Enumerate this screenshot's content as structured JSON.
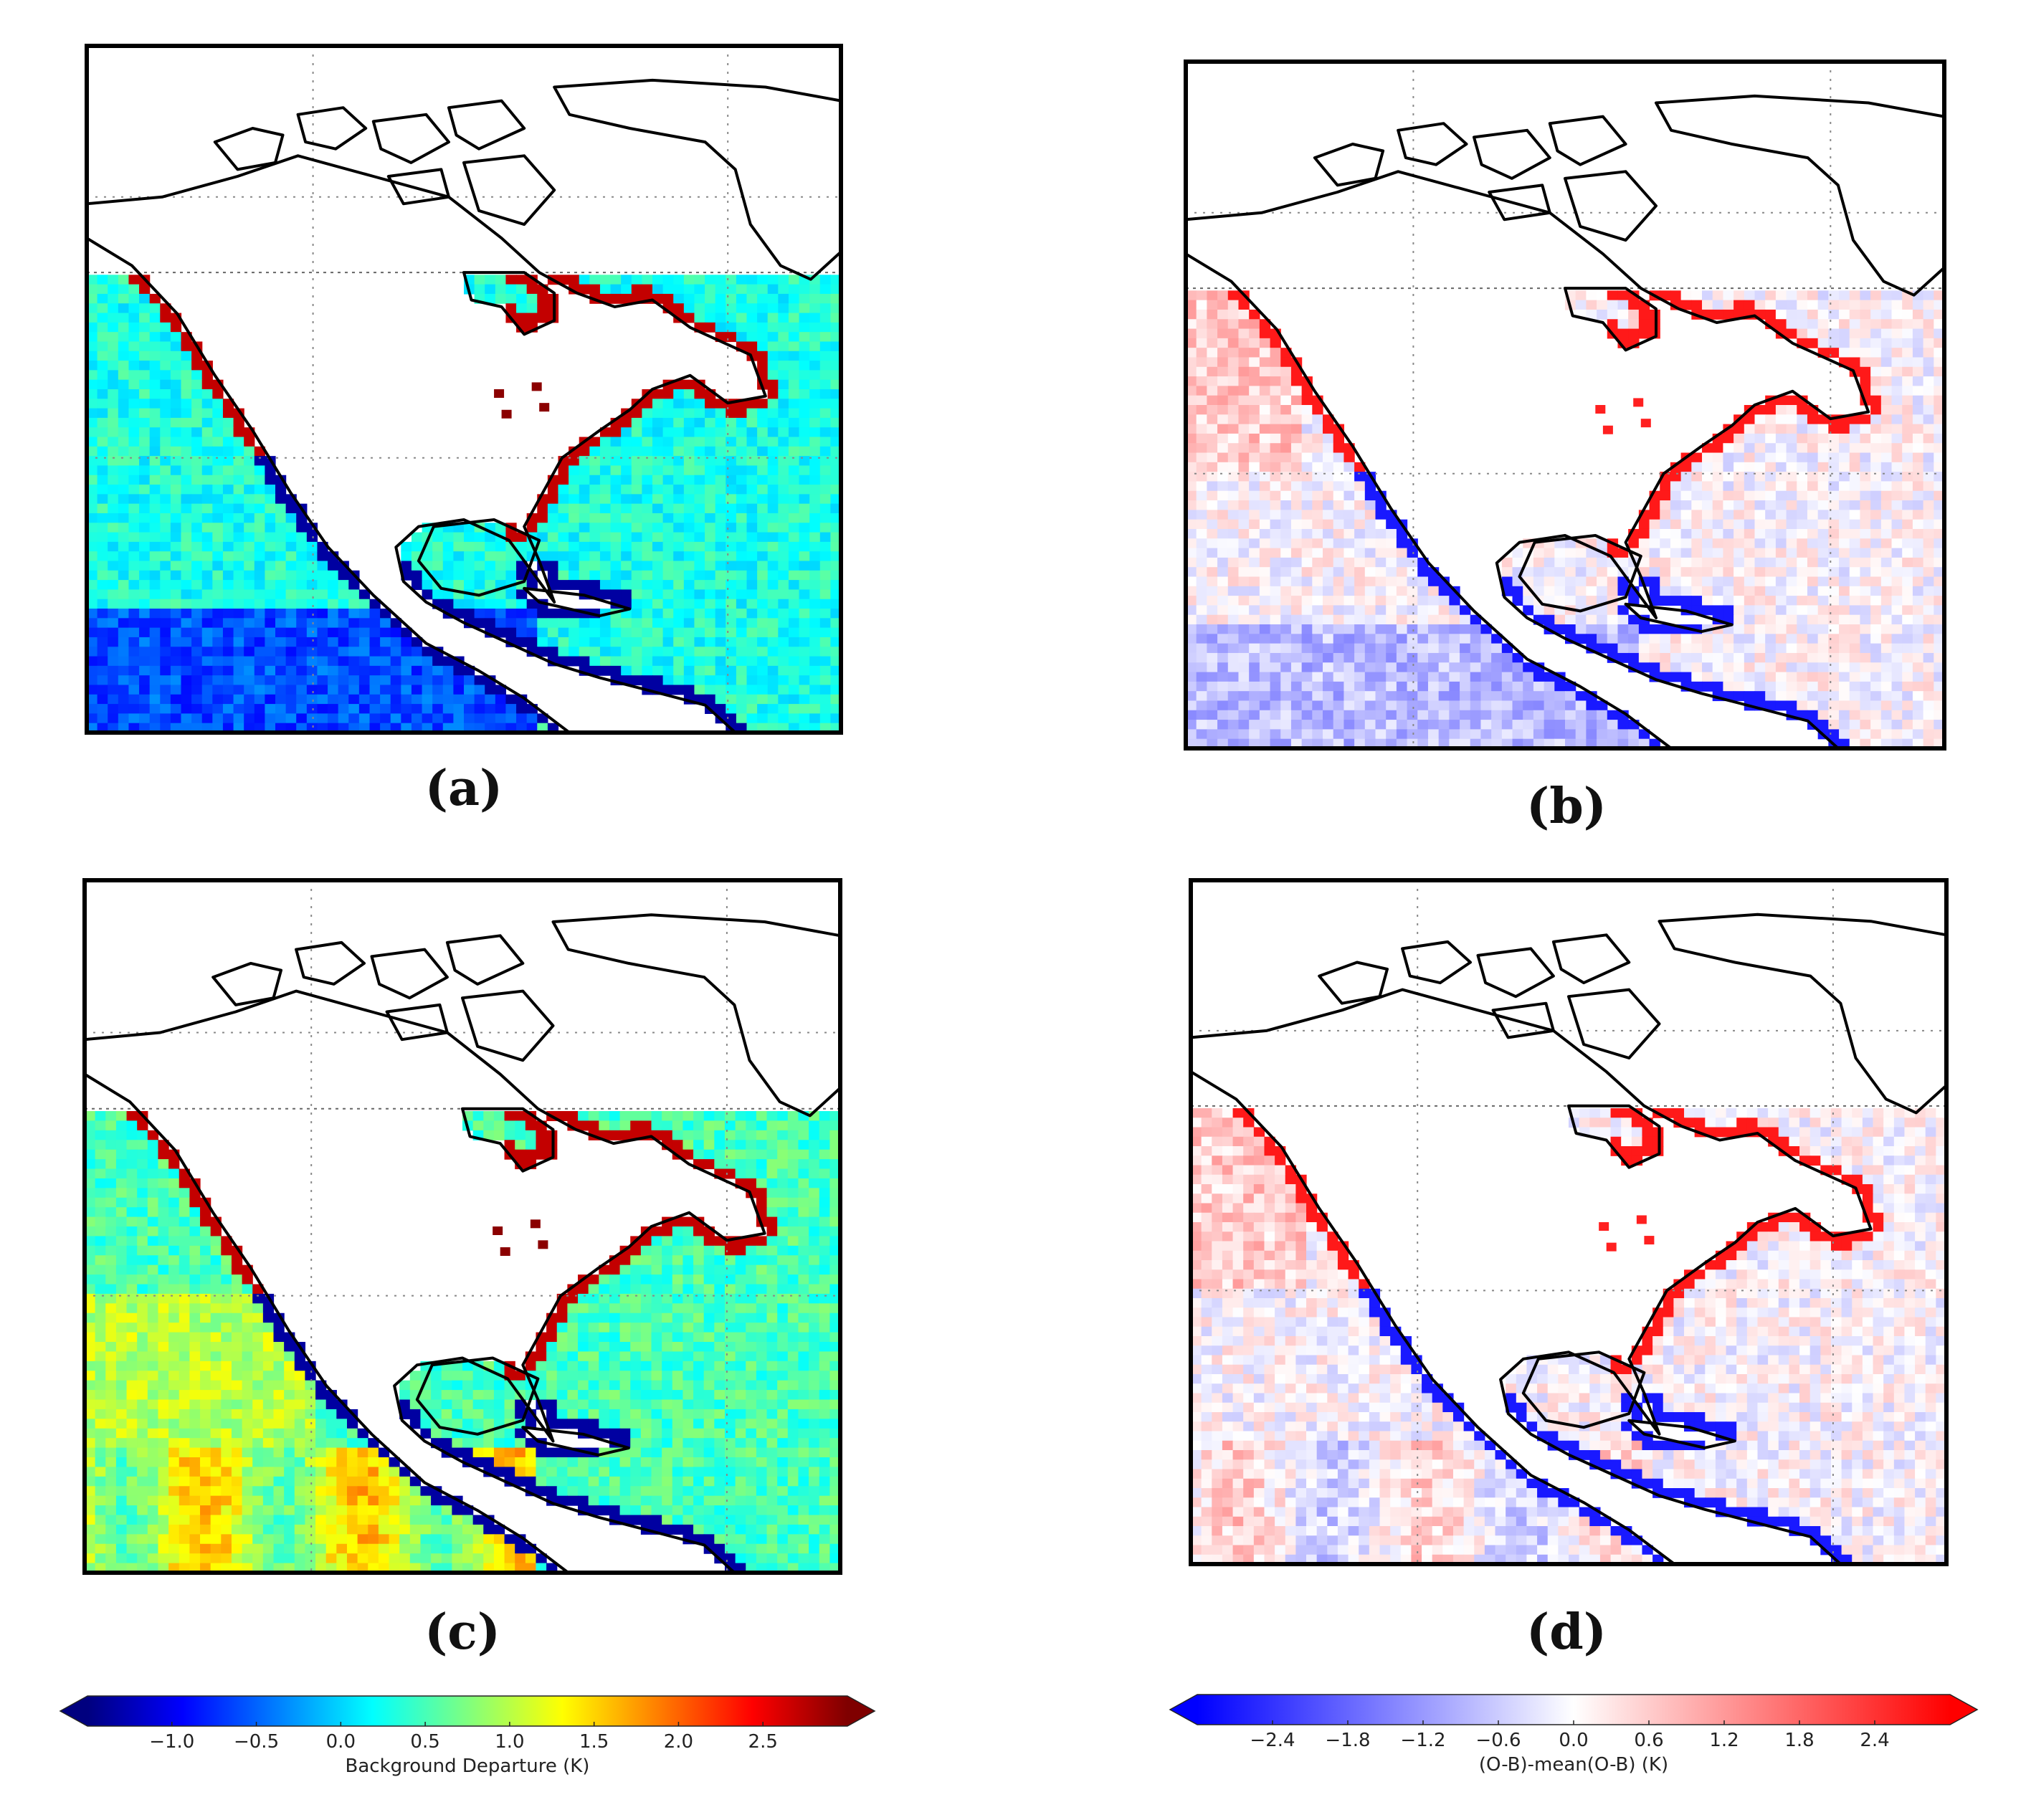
{
  "panels": [
    {
      "id": "a",
      "caption": "(a)",
      "scheme": "jet"
    },
    {
      "id": "b",
      "caption": "(b)",
      "scheme": "bwr"
    },
    {
      "id": "c",
      "caption": "(c)",
      "scheme": "jet"
    },
    {
      "id": "d",
      "caption": "(d)",
      "scheme": "bwr"
    }
  ],
  "colorbar_left": {
    "label": "Background Departure (K)",
    "ticks": [
      "−1.0",
      "−0.5",
      "0.0",
      "0.5",
      "1.0",
      "1.5",
      "2.0",
      "2.5"
    ],
    "tick_values": [
      -1.0,
      -0.5,
      0.0,
      0.5,
      1.0,
      1.5,
      2.0,
      2.5
    ],
    "range": [
      -1.5,
      3.0
    ],
    "extend": "both",
    "colors": [
      "#00007f",
      "#0000ff",
      "#007fff",
      "#00ffff",
      "#7fff7f",
      "#ffff00",
      "#ff7f00",
      "#ff0000",
      "#7f0000"
    ]
  },
  "colorbar_right": {
    "label": "(O-B)-mean(O-B) (K)",
    "ticks": [
      "−2.4",
      "−1.8",
      "−1.2",
      "−0.6",
      "0.0",
      "0.6",
      "1.2",
      "1.8",
      "2.4"
    ],
    "tick_values": [
      -2.4,
      -1.8,
      -1.2,
      -0.6,
      0.0,
      0.6,
      1.2,
      1.8,
      2.4
    ],
    "range": [
      -3.0,
      3.0
    ],
    "extend": "both",
    "colors": [
      "#0000ff",
      "#ffffff",
      "#ff0000"
    ]
  }
}
